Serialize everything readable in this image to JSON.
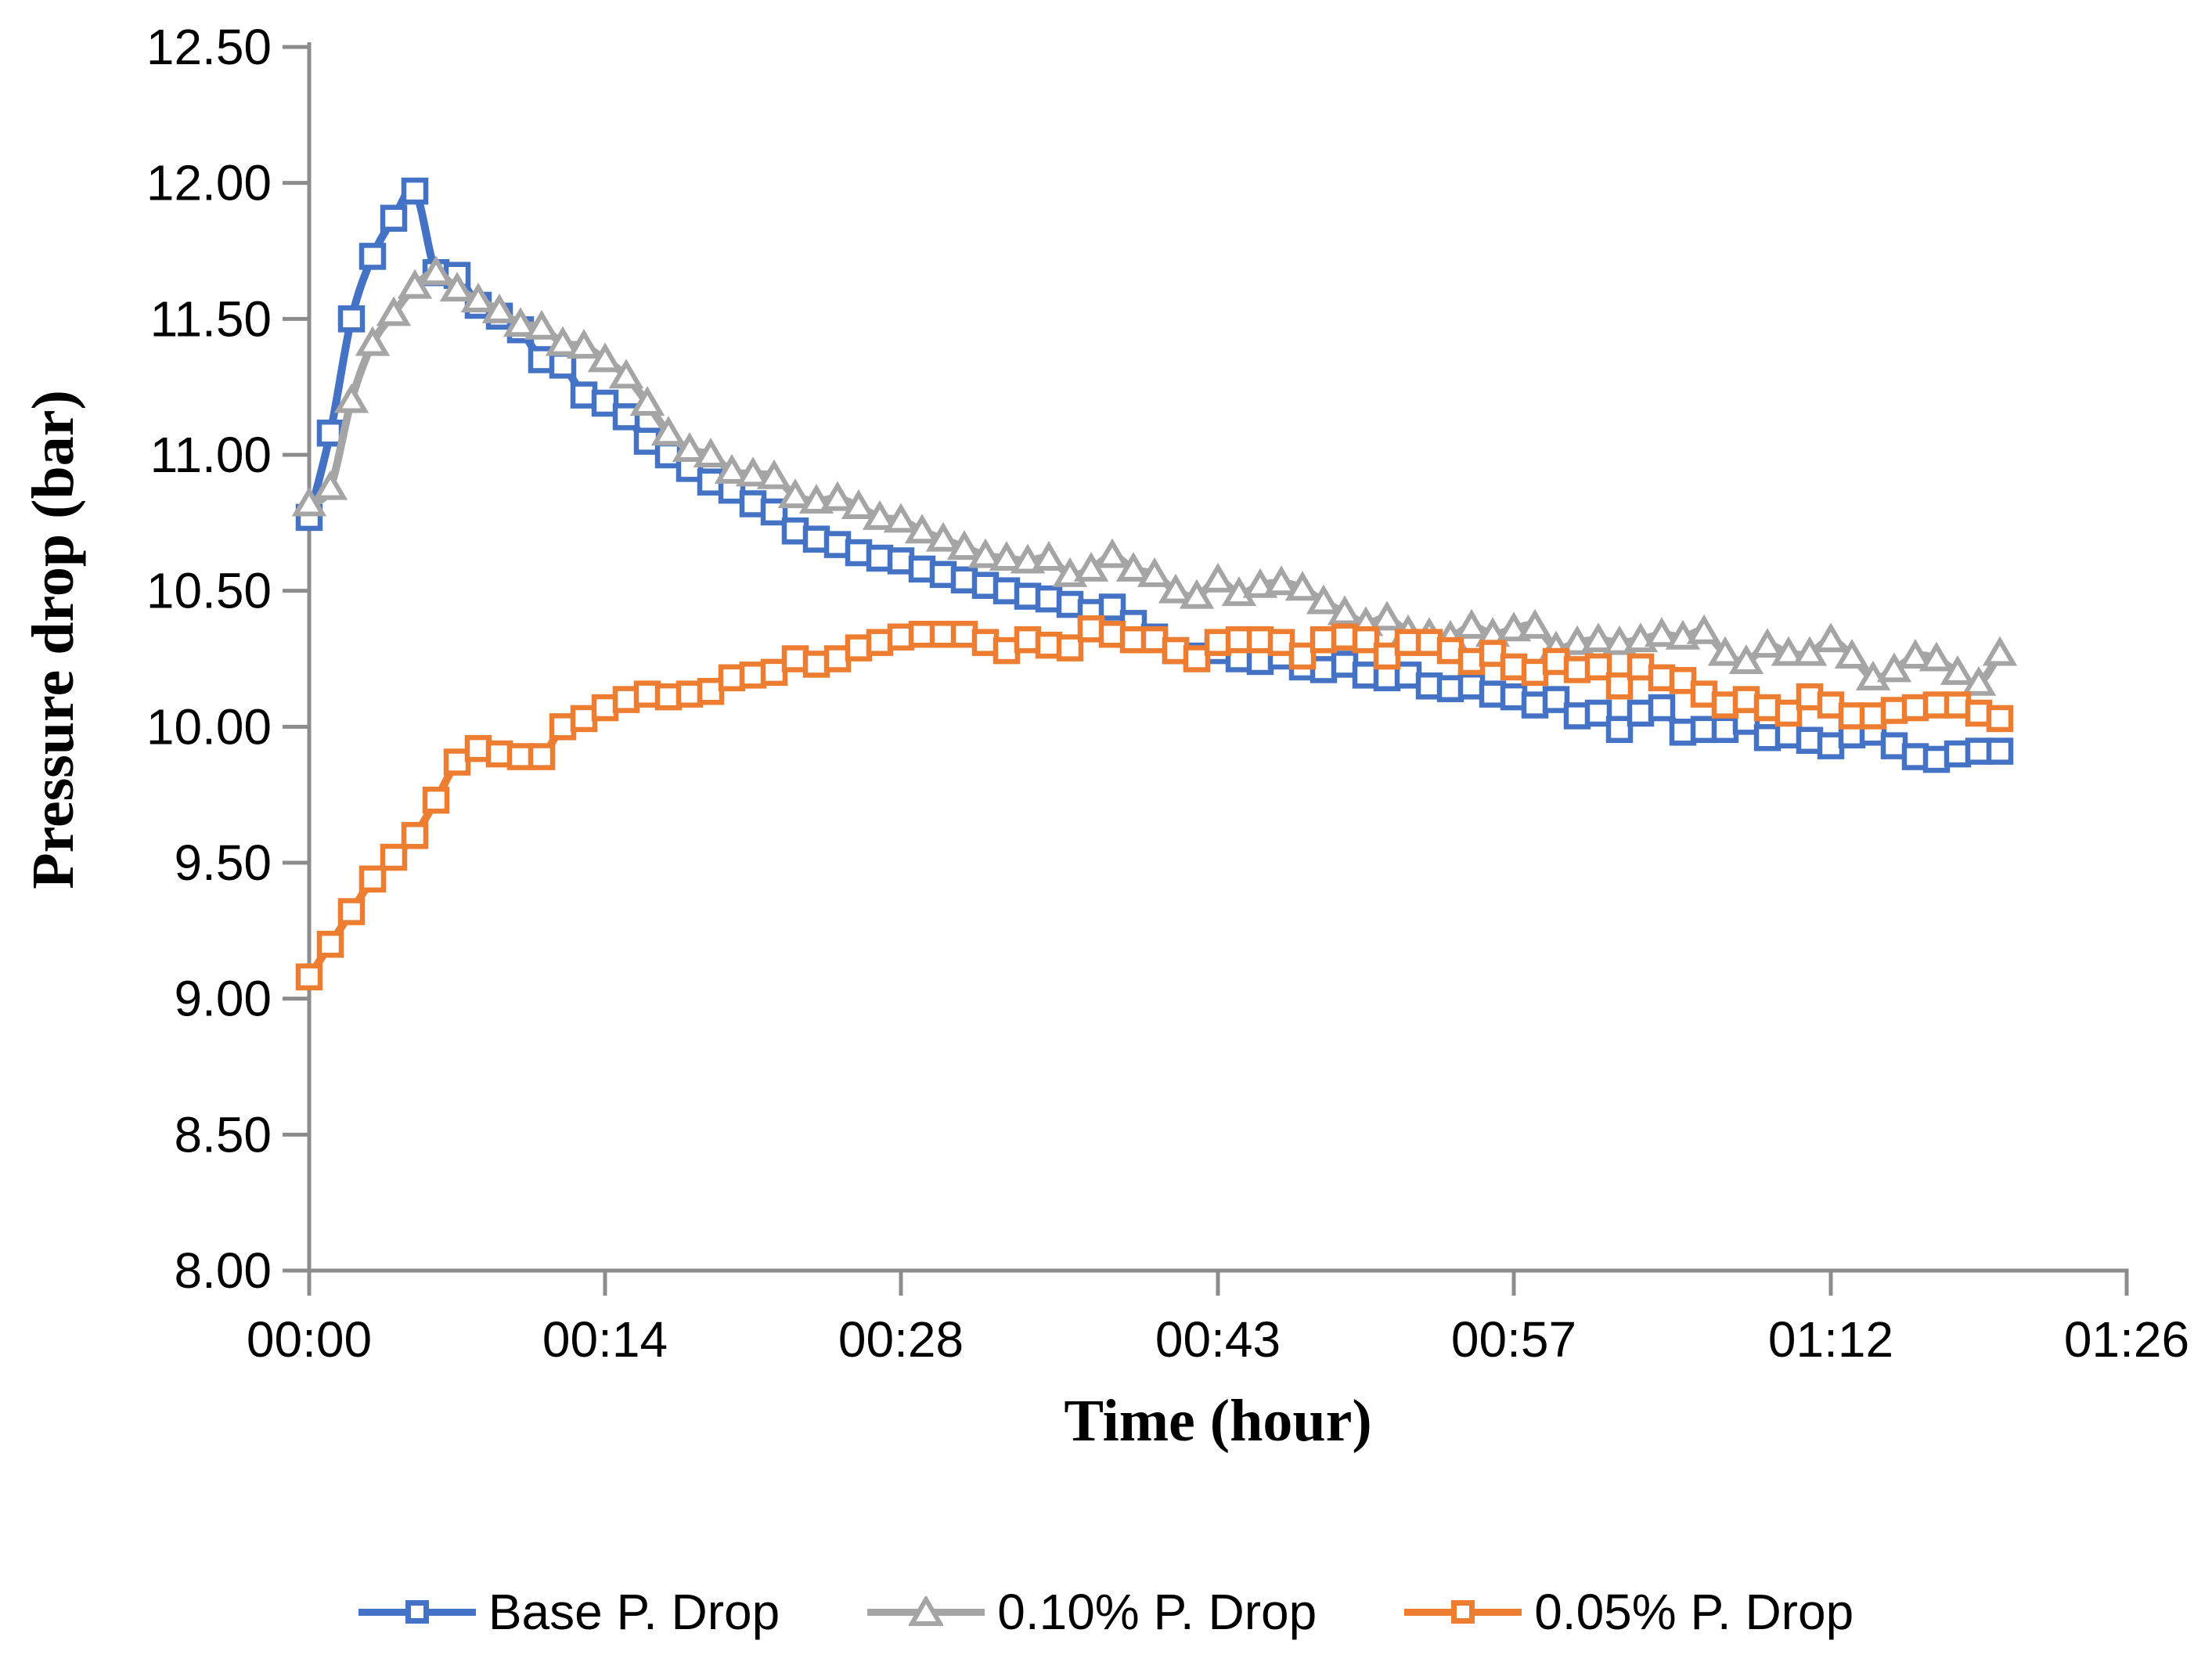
{
  "chart_data": {
    "type": "line",
    "title": "",
    "xlabel": "Time (hour)",
    "ylabel": "Pressure drop (bar)",
    "x_ticks": [
      "00:00",
      "00:14",
      "00:28",
      "00:43",
      "00:57",
      "01:12",
      "01:26"
    ],
    "x_tick_minutes": [
      0,
      14,
      28,
      43,
      57,
      72,
      86
    ],
    "xlim_minutes": [
      0,
      86
    ],
    "y_ticks": [
      "12.50",
      "12.00",
      "11.50",
      "11.00",
      "10.50",
      "10.00",
      "9.50",
      "9.00",
      "8.50",
      "8.00"
    ],
    "y_tick_values": [
      12.5,
      12.0,
      11.5,
      11.0,
      10.5,
      10.0,
      9.5,
      9.0,
      8.5,
      8.0
    ],
    "ylim": [
      8.0,
      12.5
    ],
    "grid": false,
    "legend_position": "bottom",
    "axis_color": "#8C8C8C",
    "text_color": "#000000",
    "x_start_minute": 0,
    "x_step_minutes": 1,
    "series": [
      {
        "name": "Base P. Drop",
        "color": "#4472C4",
        "marker": "square",
        "values": [
          10.77,
          11.08,
          11.5,
          11.73,
          11.87,
          11.97,
          11.67,
          11.66,
          11.55,
          11.51,
          11.46,
          11.35,
          11.33,
          11.22,
          11.19,
          11.14,
          11.05,
          11.0,
          10.95,
          10.9,
          10.87,
          10.82,
          10.79,
          10.72,
          10.69,
          10.67,
          10.64,
          10.62,
          10.61,
          10.58,
          10.56,
          10.54,
          10.52,
          10.5,
          10.48,
          10.47,
          10.45,
          10.42,
          10.44,
          10.38,
          10.33,
          10.28,
          10.26,
          10.28,
          10.25,
          10.24,
          10.26,
          10.22,
          10.21,
          10.23,
          10.19,
          10.18,
          10.19,
          10.15,
          10.14,
          10.15,
          10.12,
          10.11,
          10.08,
          10.1,
          10.04,
          10.05,
          9.99,
          10.05,
          10.07,
          9.98,
          9.99,
          9.99,
          10.02,
          9.96,
          9.97,
          9.95,
          9.93,
          9.97,
          9.98,
          9.93,
          9.89,
          9.88,
          9.9,
          9.91,
          9.91
        ]
      },
      {
        "name": "0.10% P. Drop",
        "color": "#A5A5A5",
        "marker": "triangle",
        "values": [
          10.82,
          10.88,
          11.2,
          11.41,
          11.52,
          11.62,
          11.67,
          11.61,
          11.57,
          11.53,
          11.48,
          11.47,
          11.41,
          11.4,
          11.35,
          11.29,
          11.19,
          11.08,
          11.02,
          11.0,
          10.94,
          10.93,
          10.92,
          10.85,
          10.83,
          10.84,
          10.81,
          10.77,
          10.76,
          10.72,
          10.69,
          10.66,
          10.63,
          10.62,
          10.61,
          10.62,
          10.56,
          10.58,
          10.63,
          10.58,
          10.56,
          10.5,
          10.48,
          10.54,
          10.49,
          10.52,
          10.53,
          10.51,
          10.46,
          10.42,
          10.38,
          10.4,
          10.35,
          10.34,
          10.33,
          10.37,
          10.34,
          10.36,
          10.37,
          10.29,
          10.31,
          10.32,
          10.31,
          10.32,
          10.34,
          10.33,
          10.35,
          10.27,
          10.24,
          10.3,
          10.27,
          10.27,
          10.32,
          10.26,
          10.18,
          10.21,
          10.26,
          10.25,
          10.2,
          10.16,
          10.27
        ]
      },
      {
        "name": "0.05% P. Drop",
        "color": "#ED7D31",
        "marker": "square",
        "values": [
          9.08,
          9.2,
          9.32,
          9.44,
          9.52,
          9.6,
          9.73,
          9.87,
          9.92,
          9.9,
          9.89,
          9.89,
          10.0,
          10.03,
          10.07,
          10.1,
          10.12,
          10.11,
          10.12,
          10.13,
          10.18,
          10.19,
          10.2,
          10.25,
          10.23,
          10.25,
          10.29,
          10.31,
          10.33,
          10.34,
          10.34,
          10.34,
          10.31,
          10.28,
          10.32,
          10.3,
          10.29,
          10.36,
          10.34,
          10.32,
          10.32,
          10.28,
          10.25,
          10.31,
          10.32,
          10.32,
          10.31,
          10.26,
          10.32,
          10.33,
          10.32,
          10.26,
          10.31,
          10.31,
          10.28,
          10.24,
          10.27,
          10.22,
          10.2,
          10.24,
          10.21,
          10.22,
          10.15,
          10.22,
          10.18,
          10.17,
          10.12,
          10.08,
          10.1,
          10.07,
          10.05,
          10.11,
          10.08,
          10.04,
          10.04,
          10.06,
          10.07,
          10.08,
          10.08,
          10.05,
          10.03
        ]
      }
    ]
  }
}
